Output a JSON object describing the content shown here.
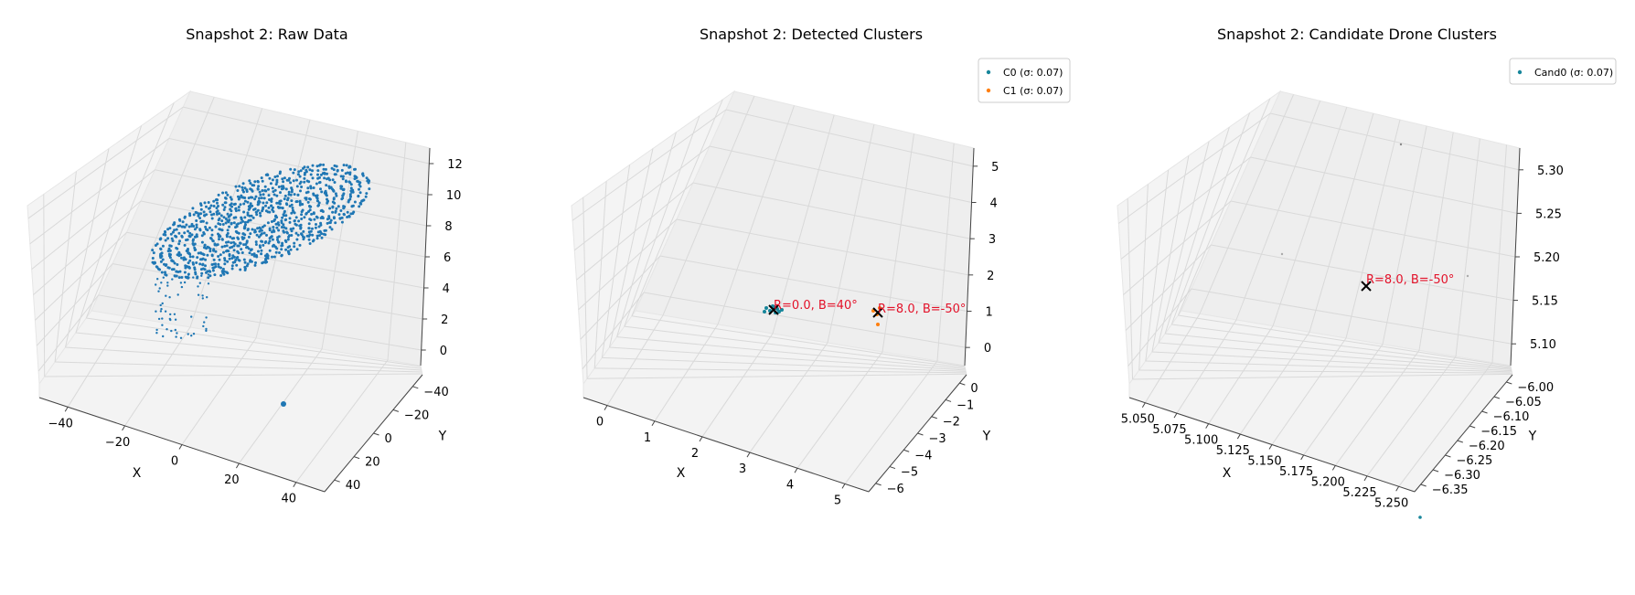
{
  "colors": {
    "c0": "#1f77b4",
    "c0_teal": "#17869b",
    "c1": "#ff7f0e",
    "annotation": "#e3122a",
    "marker": "#000000",
    "pane": "#f2f2f2",
    "grid": "#d9d9d9"
  },
  "chart_data": [
    {
      "type": "scatter3d",
      "title": "Snapshot 2: Raw Data",
      "xlabel": "X",
      "ylabel": "Y",
      "zlabel": "",
      "xlim": [
        -50,
        50
      ],
      "ylim": [
        -50,
        50
      ],
      "zlim": [
        -1,
        13
      ],
      "xticks": [
        "−40",
        "−20",
        "0",
        "20",
        "40"
      ],
      "yticks": [
        "−40",
        "−20",
        "0",
        "20",
        "40"
      ],
      "zticks": [
        "0",
        "2",
        "4",
        "6",
        "8",
        "10",
        "12"
      ],
      "series": [
        {
          "color": "#1f77b4",
          "description_points": [
            [
              -20,
              10,
              4
            ],
            [
              -15,
              12,
              5
            ],
            [
              -10,
              15,
              6
            ],
            [
              0,
              18,
              7
            ],
            [
              10,
              20,
              8
            ],
            [
              15,
              15,
              9
            ],
            [
              5,
              8,
              8
            ],
            [
              -5,
              5,
              6
            ],
            [
              -12,
              3,
              4
            ],
            [
              -18,
              0,
              3
            ],
            [
              0,
              -10,
              0
            ]
          ]
        }
      ]
    },
    {
      "type": "scatter3d",
      "title": "Snapshot 2: Detected Clusters",
      "xlabel": "X",
      "ylabel": "Y",
      "zlabel": "",
      "xlim": [
        -0.5,
        5.5
      ],
      "ylim": [
        -6.3,
        0.3
      ],
      "zlim": [
        -0.3,
        5.5
      ],
      "xticks": [
        "0",
        "1",
        "2",
        "3",
        "4",
        "5"
      ],
      "yticks": [
        "0",
        "−1",
        "−2",
        "−3",
        "−4",
        "−5",
        "−6"
      ],
      "zticks": [
        "0",
        "1",
        "2",
        "3",
        "4",
        "5"
      ],
      "legend": {
        "position": "top-right",
        "entries": [
          {
            "label": "C0 (σ: 0.07)",
            "color": "#17869b"
          },
          {
            "label": "C1 (σ: 0.07)",
            "color": "#ff7f0e"
          }
        ]
      },
      "annotations": [
        {
          "text": "R=0.0, B=40°",
          "at": [
            0.0,
            0.0,
            2.0
          ]
        },
        {
          "text": "R=8.0, B=-50°",
          "at": [
            5.1,
            -6.1,
            5.2
          ]
        }
      ]
    },
    {
      "type": "scatter3d",
      "title": "Snapshot 2: Candidate Drone Clusters",
      "xlabel": "X",
      "ylabel": "Y",
      "zlabel": "",
      "xlim": [
        5.03,
        5.26
      ],
      "ylim": [
        -6.37,
        -5.99
      ],
      "zlim": [
        5.09,
        5.31
      ],
      "xticks": [
        "5.050",
        "5.075",
        "5.100",
        "5.125",
        "5.150",
        "5.175",
        "5.200",
        "5.225",
        "5.250"
      ],
      "yticks": [
        "−6.00",
        "−6.05",
        "−6.10",
        "−6.15",
        "−6.20",
        "−6.25",
        "−6.30",
        "−6.35"
      ],
      "zticks": [
        "5.10",
        "5.15",
        "5.20",
        "5.25",
        "5.30"
      ],
      "legend": {
        "position": "top-right",
        "entries": [
          {
            "label": "Cand0 (σ: 0.07)",
            "color": "#17869b"
          }
        ]
      },
      "annotations": [
        {
          "text": "R=8.0, B=-50°",
          "at": [
            5.14,
            -6.18,
            5.21
          ]
        }
      ]
    }
  ]
}
